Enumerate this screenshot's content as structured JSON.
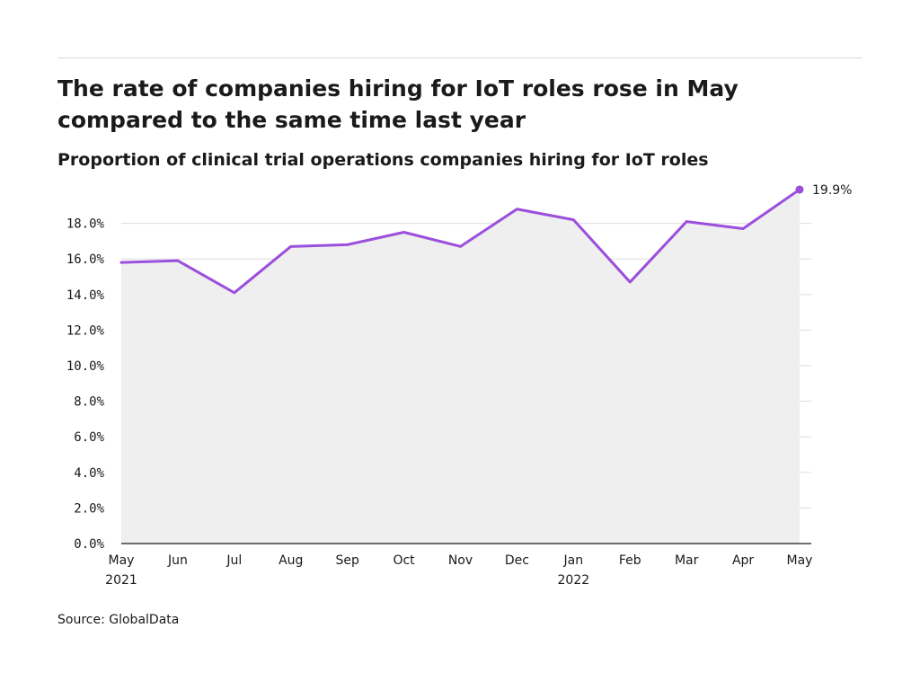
{
  "title": "The rate of companies hiring for IoT roles rose in May compared to the same time last year",
  "subtitle": "Proportion of clinical trial operations companies hiring for IoT roles",
  "source": "Source: GlobalData",
  "colors": {
    "line": "#9b4fdc",
    "area": "#efefef",
    "grid": "#dddddd",
    "axis": "#1a1a1a"
  },
  "chart_data": {
    "type": "line",
    "title": "The rate of companies hiring for IoT roles rose in May compared to the same time last year",
    "subtitle": "Proportion of clinical trial operations companies hiring for IoT roles",
    "xlabel": "",
    "ylabel": "",
    "x": [
      "May 2021",
      "Jun 2021",
      "Jul 2021",
      "Aug 2021",
      "Sep 2021",
      "Oct 2021",
      "Nov 2021",
      "Dec 2021",
      "Jan 2022",
      "Feb 2022",
      "Mar 2022",
      "Apr 2022",
      "May 2022"
    ],
    "x_tick_labels": [
      {
        "line1": "May",
        "line2": "2021"
      },
      {
        "line1": "Jun",
        "line2": ""
      },
      {
        "line1": "Jul",
        "line2": ""
      },
      {
        "line1": "Aug",
        "line2": ""
      },
      {
        "line1": "Sep",
        "line2": ""
      },
      {
        "line1": "Oct",
        "line2": ""
      },
      {
        "line1": "Nov",
        "line2": ""
      },
      {
        "line1": "Dec",
        "line2": ""
      },
      {
        "line1": "Jan",
        "line2": "2022"
      },
      {
        "line1": "Feb",
        "line2": ""
      },
      {
        "line1": "Mar",
        "line2": ""
      },
      {
        "line1": "Apr",
        "line2": ""
      },
      {
        "line1": "May",
        "line2": ""
      }
    ],
    "series": [
      {
        "values": [
          15.8,
          15.9,
          14.1,
          16.7,
          16.8,
          17.5,
          16.7,
          18.8,
          18.2,
          14.7,
          18.1,
          17.7,
          19.9
        ]
      }
    ],
    "end_label": "19.9%",
    "ylim": [
      0,
      20
    ],
    "y_ticks": [
      "0.0%",
      "2.0%",
      "4.0%",
      "6.0%",
      "8.0%",
      "10.0%",
      "12.0%",
      "14.0%",
      "16.0%",
      "18.0%"
    ],
    "y_tick_values": [
      0,
      2,
      4,
      6,
      8,
      10,
      12,
      14,
      16,
      18
    ],
    "grid": true,
    "area_fill": true,
    "legend": "none"
  }
}
